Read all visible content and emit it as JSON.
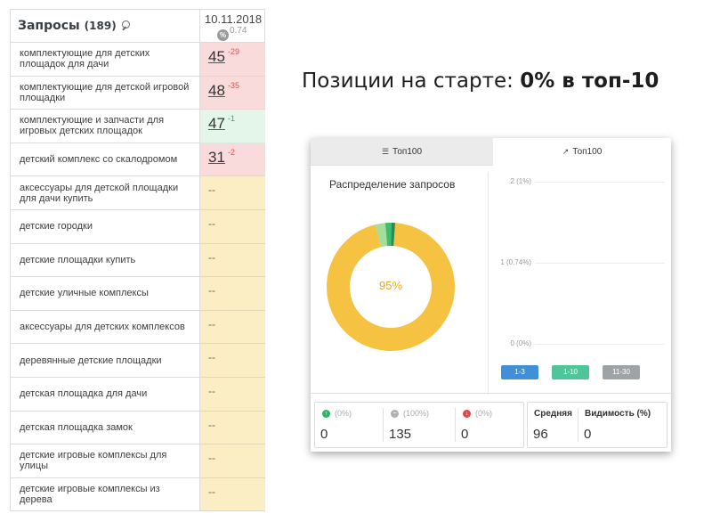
{
  "table": {
    "header_title": "Запросы",
    "header_count": "(189)",
    "date": "10.11.2018",
    "avg": "0.74",
    "pct_icon": "%",
    "rows": [
      {
        "query": "комплектующие для детских площадок для дачи",
        "pos": "45",
        "chg": "-29",
        "state": "red"
      },
      {
        "query": "комплектующие для детской игровой площадки",
        "pos": "48",
        "chg": "-35",
        "state": "red"
      },
      {
        "query": "комплектующие и запчасти для игровых детских площадок",
        "pos": "47",
        "chg": "-1",
        "state": "green"
      },
      {
        "query": "детский комплекс со скалодромом",
        "pos": "31",
        "chg": "-2",
        "state": "red"
      },
      {
        "query": "аксессуары для детской площадки для дачи купить",
        "pos": "--",
        "chg": "",
        "state": "none"
      },
      {
        "query": "детские городки",
        "pos": "--",
        "chg": "",
        "state": "none"
      },
      {
        "query": "детские площадки купить",
        "pos": "--",
        "chg": "",
        "state": "none"
      },
      {
        "query": "детские уличные комплексы",
        "pos": "--",
        "chg": "",
        "state": "none"
      },
      {
        "query": "аксессуары для детских комплексов",
        "pos": "--",
        "chg": "",
        "state": "none"
      },
      {
        "query": "деревянные детские площадки",
        "pos": "--",
        "chg": "",
        "state": "none"
      },
      {
        "query": "детская площадка для дачи",
        "pos": "--",
        "chg": "",
        "state": "none"
      },
      {
        "query": "детская площадка замок",
        "pos": "--",
        "chg": "",
        "state": "none"
      },
      {
        "query": "детские игровые комплексы для улицы",
        "pos": "--",
        "chg": "",
        "state": "none"
      },
      {
        "query": "детские игровые комплексы из дерева",
        "pos": "--",
        "chg": "",
        "state": "none"
      }
    ]
  },
  "headline": {
    "prefix": "Позиции на старте: ",
    "bold": "0% в топ-10"
  },
  "widget": {
    "tab_a_icon": "layers-icon",
    "tab_a": "Топ100",
    "tab_b_icon": "trend-icon",
    "tab_b": "Топ100",
    "dist_title": "Распределение запросов",
    "donut_label": "95%",
    "donut": [
      {
        "value": 95,
        "color": "#f5c242"
      },
      {
        "value": 2.5,
        "color": "#a8dc9a"
      },
      {
        "value": 1.5,
        "color": "#3ebd6e"
      },
      {
        "value": 1,
        "color": "#2a8a53"
      }
    ],
    "yaxis": [
      "2 (1%)",
      "1 (0.74%)",
      "0 (0%)"
    ],
    "legend": [
      {
        "label": "1-3",
        "color": "#3f8fd9"
      },
      {
        "label": "1-10",
        "color": "#4fc59a"
      },
      {
        "label": "11-30",
        "color": "#9ea3a6"
      }
    ],
    "stats": {
      "up_pct": "(0%)",
      "up_val": "0",
      "up_color": "#2ab36a",
      "same_pct": "(100%)",
      "same_val": "135",
      "same_color": "#b0b0b0",
      "down_pct": "(0%)",
      "down_val": "0",
      "down_color": "#e04848",
      "avg_label": "Средняя",
      "avg_val": "96",
      "vis_label": "Видимость (%)",
      "vis_val": "0"
    }
  }
}
